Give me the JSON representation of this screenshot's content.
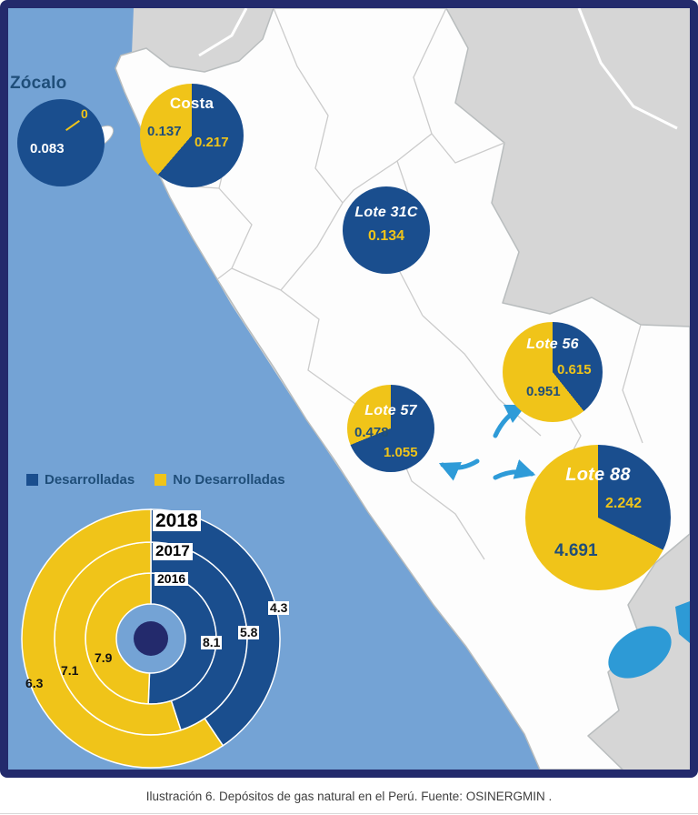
{
  "caption": "Ilustración 6. Depósitos de gas natural en el Perú. Fuente: OSINERGMIN .",
  "colors": {
    "frame": "#232A6C",
    "ocean": "#74A3D5",
    "neighbor": "#D6D6D6",
    "land": "#FDFDFD",
    "lake": "#2D9AD6",
    "arrow": "#2E9BD8",
    "developed": "#1A4E8E",
    "undeveloped": "#F0C419",
    "navy_text": "#1F4E79"
  },
  "chart_data": [
    {
      "type": "pie",
      "id": "zocalo",
      "title": "Zócalo",
      "series": [
        {
          "name": "Desarrolladas",
          "value": 0.083
        },
        {
          "name": "No Desarrolladas",
          "value": 0
        }
      ]
    },
    {
      "type": "pie",
      "id": "costa",
      "title": "Costa",
      "series": [
        {
          "name": "Desarrolladas",
          "value": 0.217
        },
        {
          "name": "No Desarrolladas",
          "value": 0.137
        }
      ]
    },
    {
      "type": "pie",
      "id": "lote31c",
      "title": "Lote 31C",
      "series": [
        {
          "name": "Desarrolladas",
          "value": 0.134
        },
        {
          "name": "No Desarrolladas",
          "value": 0
        }
      ]
    },
    {
      "type": "pie",
      "id": "lote56",
      "title": "Lote 56",
      "series": [
        {
          "name": "Desarrolladas",
          "value": 0.615
        },
        {
          "name": "No Desarrolladas",
          "value": 0.951
        }
      ]
    },
    {
      "type": "pie",
      "id": "lote57",
      "title": "Lote 57",
      "series": [
        {
          "name": "Desarrolladas",
          "value": 1.055
        },
        {
          "name": "No Desarrolladas",
          "value": 0.478
        }
      ]
    },
    {
      "type": "pie",
      "id": "lote88",
      "title": "Lote 88",
      "series": [
        {
          "name": "Desarrolladas",
          "value": 2.242
        },
        {
          "name": "No Desarrolladas",
          "value": 4.691
        }
      ]
    },
    {
      "type": "donut",
      "id": "reservas-anuales",
      "legend": [
        "Desarrolladas",
        "No Desarrolladas"
      ],
      "rings": [
        {
          "year": "2016",
          "desarrolladas": 8.1,
          "no_desarrolladas": 7.9
        },
        {
          "year": "2017",
          "desarrolladas": 5.8,
          "no_desarrolladas": 7.1
        },
        {
          "year": "2018",
          "desarrolladas": 4.3,
          "no_desarrolladas": 6.3
        }
      ]
    }
  ]
}
